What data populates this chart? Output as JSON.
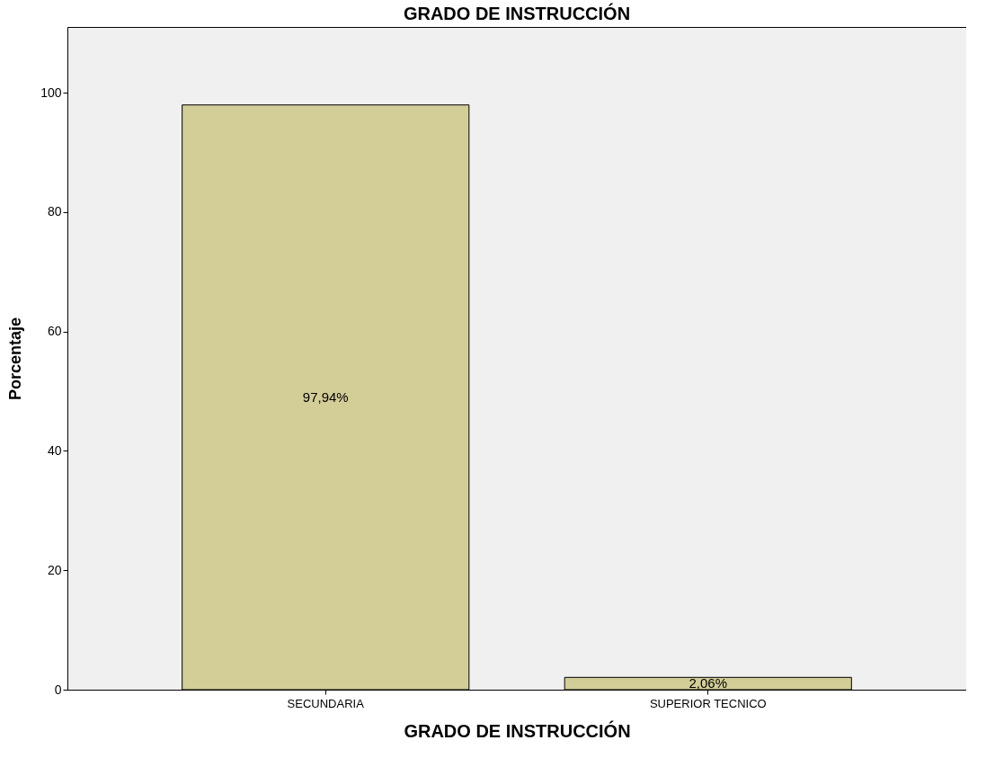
{
  "chart_data": {
    "type": "bar",
    "title": "GRADO DE INSTRUCCIÓN",
    "xlabel": "GRADO DE INSTRUCCIÓN",
    "ylabel": "Porcentaje",
    "categories": [
      "SECUNDARIA",
      "SUPERIOR TECNICO"
    ],
    "values": [
      97.94,
      2.06
    ],
    "value_labels": [
      "97,94%",
      "2,06%"
    ],
    "color": "#d3cd98",
    "ylim": [
      0,
      111
    ],
    "yticks": [
      0,
      20,
      40,
      60,
      80,
      100
    ]
  }
}
